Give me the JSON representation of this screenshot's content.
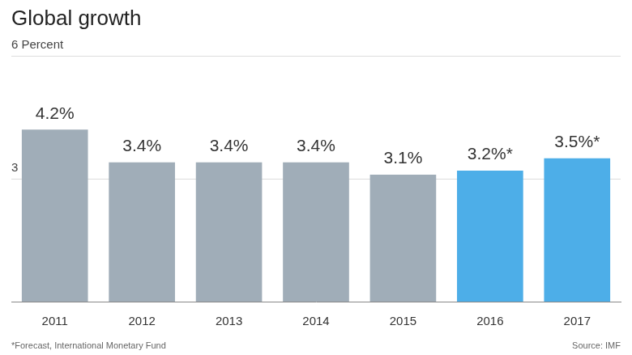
{
  "chart_data": {
    "type": "bar",
    "title": "Global growth",
    "categories": [
      "2011",
      "2012",
      "2013",
      "2014",
      "2015",
      "2016",
      "2017"
    ],
    "values": [
      4.2,
      3.4,
      3.4,
      3.4,
      3.1,
      3.2,
      3.5
    ],
    "value_labels": [
      "4.2%",
      "3.4%",
      "3.4%",
      "3.4%",
      "3.1%",
      "3.2%*",
      "3.5%*"
    ],
    "colors": [
      "#a0adb8",
      "#a0adb8",
      "#a0adb8",
      "#a0adb8",
      "#a0adb8",
      "#4daee8",
      "#4daee8"
    ],
    "ylim": [
      0,
      6
    ],
    "yticks": [
      3,
      {
        "value": 6,
        "label": "6 Percent"
      }
    ],
    "grid": true,
    "data_labels": true,
    "footnote": "*Forecast, International Monetary Fund",
    "source": "Source: IMF"
  }
}
